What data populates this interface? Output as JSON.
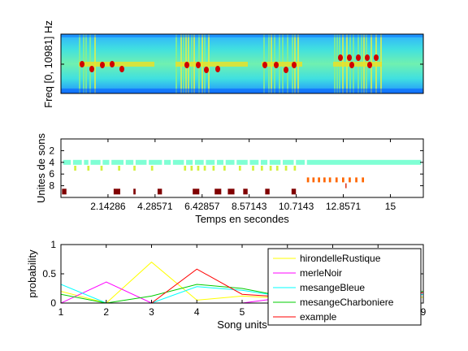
{
  "chart_data": [
    {
      "type": "heatmap",
      "ylabel": "Freq [0, 10981] Hz",
      "colormap": [
        "#00008f",
        "#0040ff",
        "#20c8ff",
        "#80ffb0",
        "#e8f040",
        "#ff8000",
        "#c00000"
      ],
      "grid": false
    },
    {
      "type": "scatter",
      "ylabel": "Unites de sons",
      "xlabel": "Temps en secondes",
      "xlim": [
        0,
        16.5
      ],
      "ylim": [
        10,
        0
      ],
      "yticks": [
        2,
        4,
        6,
        8
      ],
      "xticks": [
        2.14286,
        4.28571,
        6.42857,
        8.57143,
        10.7143,
        12.8571,
        15
      ],
      "xtick_labels": [
        "2.14286",
        "4.28571",
        "6.42857",
        "8.57143",
        "10.7143",
        "12.8571",
        "15"
      ],
      "ytick_labels": [
        "2",
        "4",
        "6",
        "8"
      ],
      "rows": [
        {
          "unit": 4,
          "color": "#7fffd4",
          "segments": [
            [
              0.1,
              0.45
            ],
            [
              0.55,
              0.95
            ],
            [
              1.05,
              1.25
            ],
            [
              1.35,
              1.8
            ],
            [
              1.9,
              2.2
            ],
            [
              2.3,
              2.85
            ],
            [
              2.95,
              3.3
            ],
            [
              3.4,
              3.9
            ],
            [
              4.0,
              4.6
            ],
            [
              4.7,
              5.0
            ],
            [
              5.1,
              5.6
            ],
            [
              5.7,
              6.0
            ],
            [
              6.1,
              6.5
            ],
            [
              6.6,
              7.0
            ],
            [
              7.1,
              7.4
            ],
            [
              7.5,
              7.9
            ],
            [
              8.0,
              8.5
            ],
            [
              8.6,
              9.0
            ],
            [
              9.1,
              9.4
            ],
            [
              9.5,
              10.0
            ],
            [
              10.1,
              10.6
            ],
            [
              10.7,
              11.1
            ],
            [
              11.2,
              16.4
            ]
          ]
        },
        {
          "unit": 5,
          "color": "#d4f040",
          "segments": [
            [
              0.6,
              0.7
            ],
            [
              1.2,
              1.3
            ],
            [
              1.8,
              1.9
            ],
            [
              2.6,
              2.7
            ],
            [
              3.3,
              3.4
            ],
            [
              4.1,
              4.2
            ],
            [
              5.6,
              5.7
            ],
            [
              5.9,
              6.0
            ],
            [
              6.2,
              6.3
            ],
            [
              6.5,
              6.6
            ],
            [
              6.9,
              7.0
            ],
            [
              7.4,
              7.5
            ],
            [
              8.1,
              8.2
            ],
            [
              8.7,
              8.8
            ],
            [
              9.1,
              9.2
            ],
            [
              9.5,
              9.6
            ],
            [
              9.8,
              9.9
            ],
            [
              10.2,
              10.3
            ],
            [
              10.6,
              10.7
            ]
          ]
        },
        {
          "unit": 7,
          "color": "#ff6600",
          "segments": [
            [
              11.2,
              11.3
            ],
            [
              11.45,
              11.55
            ],
            [
              11.7,
              11.8
            ],
            [
              11.95,
              12.05
            ],
            [
              12.2,
              12.3
            ],
            [
              12.5,
              12.6
            ],
            [
              12.8,
              12.9
            ],
            [
              13.1,
              13.2
            ],
            [
              13.4,
              13.5
            ],
            [
              13.7,
              13.8
            ]
          ]
        },
        {
          "unit": 8,
          "color": "#e03010",
          "segments": [
            [
              12.95,
              13.0
            ]
          ]
        },
        {
          "unit": 9,
          "color": "#800000",
          "segments": [
            [
              0.05,
              0.25
            ],
            [
              2.4,
              2.7
            ],
            [
              3.3,
              3.4
            ],
            [
              4.4,
              4.6
            ],
            [
              6.0,
              6.3
            ],
            [
              7.0,
              7.3
            ],
            [
              7.6,
              7.9
            ],
            [
              8.3,
              8.5
            ],
            [
              9.3,
              9.5
            ],
            [
              10.5,
              10.7
            ]
          ]
        }
      ]
    },
    {
      "type": "line",
      "ylabel": "probability",
      "xlabel": "Song units",
      "xlim": [
        1,
        9
      ],
      "ylim": [
        0,
        1
      ],
      "xticks": [
        1,
        2,
        3,
        4,
        5,
        6,
        7,
        8,
        9
      ],
      "xtick_labels": [
        "1",
        "2",
        "3",
        "4",
        "5",
        "",
        "",
        "",
        "9"
      ],
      "yticks": [
        0,
        0.5,
        1
      ],
      "ytick_labels": [
        "0",
        "0.5",
        "1"
      ],
      "x": [
        1,
        2,
        3,
        4,
        5,
        6,
        7,
        8,
        9
      ],
      "legend_position": "top-right",
      "series": [
        {
          "name": "hirondelleRustique",
          "color": "#ffff00",
          "values": [
            0.2,
            0.0,
            0.7,
            0.05,
            0.12,
            0.08,
            0.1,
            0.05,
            0.1
          ]
        },
        {
          "name": "merleNoir",
          "color": "#ff00ff",
          "values": [
            0.0,
            0.36,
            0.0,
            0.0,
            0.0,
            0.1,
            0.15,
            0.1,
            0.15
          ]
        },
        {
          "name": "mesangeBleue",
          "color": "#00ffff",
          "values": [
            0.32,
            0.0,
            0.0,
            0.28,
            0.22,
            0.1,
            0.1,
            0.05,
            0.15
          ]
        },
        {
          "name": "mesangeCharboniere",
          "color": "#00cc00",
          "values": [
            0.15,
            0.0,
            0.12,
            0.32,
            0.25,
            0.1,
            0.12,
            0.08,
            0.2
          ]
        },
        {
          "name": "example",
          "color": "#ff0000",
          "values": [
            0.0,
            0.0,
            0.0,
            0.58,
            0.15,
            0.1,
            0.12,
            0.05,
            0.18
          ]
        }
      ]
    }
  ]
}
